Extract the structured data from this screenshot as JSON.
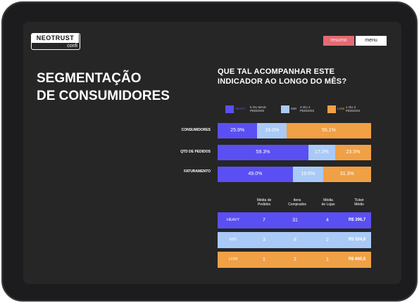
{
  "brand": {
    "name": "NEOTRUST",
    "sub": "confi"
  },
  "nav": {
    "resumo": "resumo",
    "menu": "menu"
  },
  "title": {
    "line1": "SEGMENTAÇÃO",
    "line2": "DE CONSUMIDORES"
  },
  "subtitle": {
    "line1": "QUE TAL ACOMPANHAR ESTE",
    "line2": "INDICADOR AO LONGO DO MÊS?"
  },
  "colors": {
    "heavy": "#5a4ff2",
    "mid": "#a9caf7",
    "low": "#f0a045"
  },
  "legend": [
    {
      "name": "HEAVY",
      "desc1": "5 OU MAIS",
      "desc2": "PEDIDOS"
    },
    {
      "name": "MID",
      "desc1": "3 OU 4",
      "desc2": "PEDIDOS"
    },
    {
      "name": "LOW",
      "desc1": "1 OU 2",
      "desc2": "PEDIDOS"
    }
  ],
  "chart_data": {
    "type": "bar",
    "stacked": true,
    "orientation": "horizontal",
    "categories": [
      "CONSUMIDORES",
      "QTD DE PEDIDOS",
      "FATURAMENTO"
    ],
    "series": [
      {
        "name": "HEAVY",
        "values": [
          25.9,
          59.3,
          49.0
        ],
        "labels": [
          "25.9%",
          "59.3%",
          "49.0%"
        ]
      },
      {
        "name": "MID",
        "values": [
          19.0,
          17.3,
          19.6
        ],
        "labels": [
          "19.0%",
          "17.3%",
          "19.6%"
        ]
      },
      {
        "name": "LOW",
        "values": [
          55.1,
          23.5,
          31.3
        ],
        "labels": [
          "55.1%",
          "23.5%",
          "31.3%"
        ]
      }
    ]
  },
  "table": {
    "headers": [
      {
        "l1": "Média de",
        "l2": "Pedidos"
      },
      {
        "l1": "Itens",
        "l2": "Comprados"
      },
      {
        "l1": "Média",
        "l2": "de Lojas"
      },
      {
        "l1": "Ticket",
        "l2": "Médio"
      }
    ],
    "rows": [
      {
        "segment": "HEAVY",
        "pedidos": "7",
        "itens": "31",
        "lojas": "4",
        "ticket": "R$ 396,7"
      },
      {
        "segment": "MID",
        "pedidos": "3",
        "itens": "8",
        "lojas": "2",
        "ticket": "R$ 554,8"
      },
      {
        "segment": "LOW",
        "pedidos": "1",
        "itens": "2",
        "lojas": "1",
        "ticket": "R$ 660,5"
      }
    ]
  }
}
